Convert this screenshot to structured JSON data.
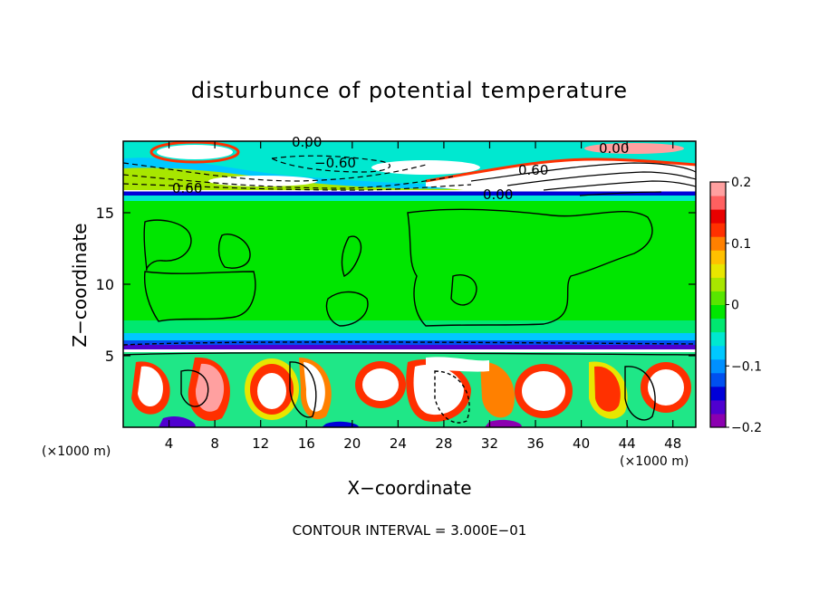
{
  "chart_data": {
    "type": "heatmap",
    "title": "disturbunce of potential temperature",
    "xlabel": "X−coordinate",
    "ylabel": "Z−coordinate",
    "x_unit_left": "(×1000 m)",
    "x_unit_right": "(×1000 m)",
    "xlim": [
      0,
      50
    ],
    "ylim": [
      0,
      20
    ],
    "x_ticks": [
      4,
      8,
      12,
      16,
      20,
      24,
      28,
      32,
      36,
      40,
      44,
      48
    ],
    "y_ticks": [
      5,
      10,
      15
    ],
    "x_tick_labels": [
      "4",
      "8",
      "12",
      "16",
      "20",
      "24",
      "28",
      "32",
      "36",
      "40",
      "44",
      "48"
    ],
    "y_tick_labels": [
      "5",
      "10",
      "15"
    ],
    "colorbar": {
      "range": [
        -0.2,
        0.2
      ],
      "ticks": [
        0.2,
        0.1,
        0,
        -0.1,
        -0.2
      ],
      "tick_labels": [
        "0.2",
        "0.1",
        "0",
        "−0.1",
        "−0.2"
      ],
      "colors": [
        "#8b00b0",
        "#4f00d0",
        "#0000d8",
        "#0050f0",
        "#0090ff",
        "#00c8ff",
        "#00e8d0",
        "#00e870",
        "#00e600",
        "#58e600",
        "#a8e600",
        "#e8e600",
        "#ffc000",
        "#ff8000",
        "#ff3000",
        "#e80000",
        "#ff6060",
        "#ffa0a0"
      ]
    },
    "contour_labels": [
      "0.00",
      "−0.60",
      "0.00",
      "0.60",
      "0.60",
      "0.00"
    ],
    "contour_interval": "CONTOUR INTERVAL = 3.000E−01"
  }
}
